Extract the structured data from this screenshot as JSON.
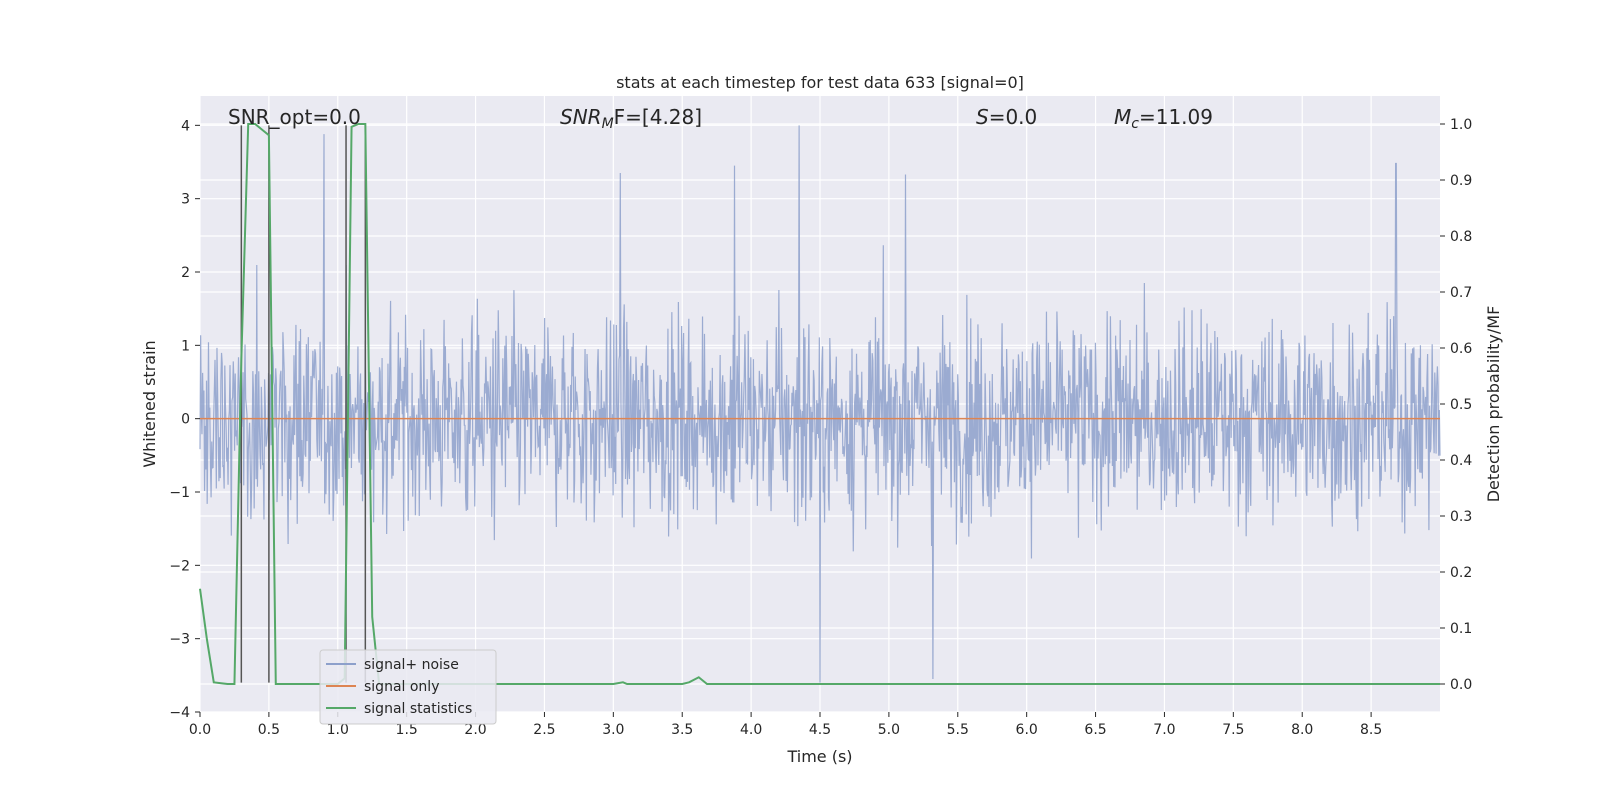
{
  "chart_data": {
    "type": "line",
    "title": "stats at each timestep for test data 633 [signal=0]",
    "xlabel": "Time (s)",
    "ylabel": "Whitened strain",
    "y2label": "Detection probability/MF",
    "xlim": [
      0.0,
      9.0
    ],
    "ylim": [
      -4.0,
      4.4
    ],
    "y2lim": [
      -0.05,
      1.05
    ],
    "grid": true,
    "legend_position": "lower-left",
    "x_ticks": [
      "0.0",
      "0.5",
      "1.0",
      "1.5",
      "2.0",
      "2.5",
      "3.0",
      "3.5",
      "4.0",
      "4.5",
      "5.0",
      "5.5",
      "6.0",
      "6.5",
      "7.0",
      "7.5",
      "8.0",
      "8.5"
    ],
    "y_ticks": [
      "4",
      "3",
      "2",
      "1",
      "0",
      "−1",
      "−2",
      "−3",
      "−4"
    ],
    "y2_ticks": [
      "1.0",
      "0.9",
      "0.8",
      "0.7",
      "0.6",
      "0.5",
      "0.4",
      "0.3",
      "0.2",
      "0.1",
      "0.0"
    ],
    "annotations": {
      "snr_opt": "SNR_opt=0.0",
      "snr_mf_sym": "SNR",
      "snr_mf_sub": "M",
      "snr_mf_rest": "F=[4.28]",
      "s_sym": "S",
      "s_rest": "=0.0",
      "mc_sym": "M",
      "mc_sub": "c",
      "mc_rest": "=11.09"
    },
    "series": [
      {
        "name": "signal+ noise",
        "color": "#8da0cb",
        "description_values": "dense noise band roughly within ±2.5, peaks up to 4.0 near t=4.35 and down to -3.6 near t=4.5 and t=5.3",
        "peaks": [
          {
            "x": 0.9,
            "y": 3.88
          },
          {
            "x": 3.05,
            "y": 3.35
          },
          {
            "x": 3.88,
            "y": 3.45
          },
          {
            "x": 4.35,
            "y": 4.0
          },
          {
            "x": 5.12,
            "y": 3.33
          },
          {
            "x": 8.68,
            "y": 3.48
          },
          {
            "x": 4.5,
            "y": -3.6
          },
          {
            "x": 5.32,
            "y": -3.55
          }
        ]
      },
      {
        "name": "signal only",
        "color": "#dd8452",
        "values": "constant 0.0"
      },
      {
        "name": "signal statistics",
        "color": "#55a868",
        "axis": "right",
        "x": [
          0.0,
          0.05,
          0.1,
          0.2,
          0.25,
          0.3,
          0.35,
          0.4,
          0.45,
          0.5,
          0.55,
          0.6,
          0.75,
          0.9,
          1.0,
          1.05,
          1.1,
          1.15,
          1.2,
          1.25,
          1.3,
          2.5,
          3.0,
          3.07,
          3.1,
          3.5,
          3.55,
          3.62,
          3.68,
          3.75,
          9.0
        ],
        "y": [
          0.17,
          0.08,
          0.003,
          0.0,
          0.0,
          0.58,
          1.0,
          1.0,
          0.99,
          0.98,
          0.0,
          0.0,
          0.0,
          0.0,
          0.0,
          0.01,
          0.995,
          1.0,
          1.0,
          0.12,
          0.0,
          0.0,
          0.0,
          0.003,
          0.0,
          0.0,
          0.003,
          0.012,
          0.0,
          0.0,
          0.0
        ]
      }
    ],
    "vertical_lines": [
      0.3,
      0.5,
      1.06,
      1.2
    ]
  }
}
